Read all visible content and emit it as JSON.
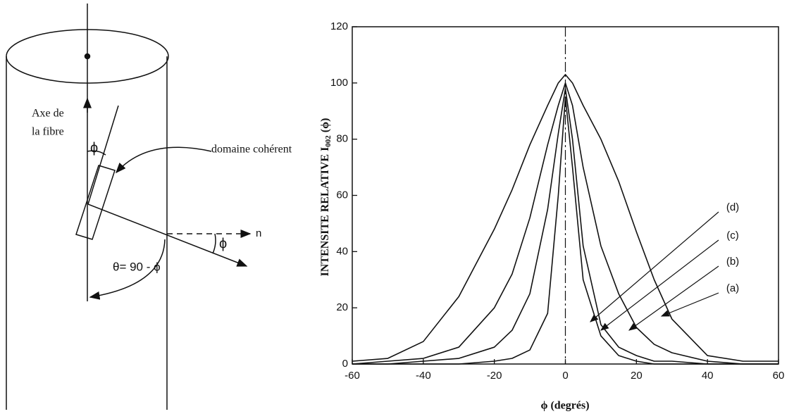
{
  "diagram": {
    "labels": [
      "Axe de",
      "la fibre",
      "domaine cohérent",
      "ϕ",
      "ϕ",
      "n",
      "θ= 90 - ϕ"
    ]
  },
  "chart_data": {
    "type": "line",
    "x_label": "ϕ (degrés)",
    "y_label": {
      "text": "INTENSITE RELATIVE I",
      "subscript": "002",
      "suffix": " (ϕ)"
    },
    "xlim": [
      -60,
      60
    ],
    "ylim": [
      0,
      120
    ],
    "xticks": [
      -60,
      -40,
      -20,
      0,
      20,
      40,
      60
    ],
    "yticks": [
      0,
      20,
      40,
      60,
      80,
      100,
      120
    ],
    "x": [
      -60,
      -50,
      -40,
      -30,
      -20,
      -15,
      -10,
      -5,
      -2,
      0,
      2,
      5,
      10,
      15,
      20,
      25,
      30,
      40,
      50,
      60
    ],
    "series": [
      {
        "name": "(a)",
        "color": "#111111",
        "values": [
          1,
          2,
          8,
          24,
          48,
          62,
          78,
          92,
          100,
          103,
          100,
          92,
          80,
          65,
          47,
          30,
          16,
          3,
          1,
          1
        ]
      },
      {
        "name": "(b)",
        "color": "#111111",
        "values": [
          0,
          1,
          2,
          6,
          20,
          32,
          52,
          78,
          92,
          100,
          92,
          70,
          42,
          25,
          13,
          7,
          4,
          1,
          0,
          0
        ]
      },
      {
        "name": "(c)",
        "color": "#111111",
        "values": [
          0,
          0,
          1,
          2,
          6,
          12,
          25,
          55,
          82,
          98,
          80,
          42,
          14,
          6,
          3,
          1,
          1,
          0,
          0,
          0
        ]
      },
      {
        "name": "(d)",
        "color": "#111111",
        "values": [
          0,
          0,
          0,
          0,
          1,
          2,
          5,
          18,
          60,
          95,
          70,
          30,
          10,
          3,
          1,
          0,
          0,
          0,
          0,
          0
        ]
      }
    ]
  }
}
